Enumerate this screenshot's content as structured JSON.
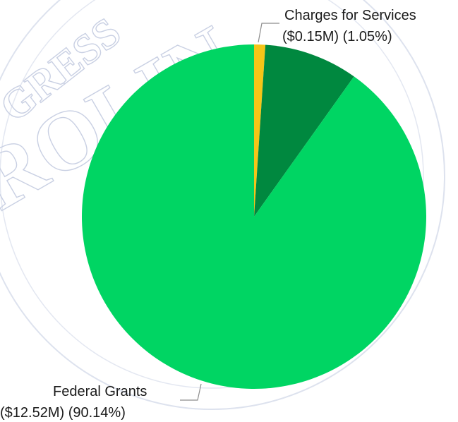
{
  "chart_data": {
    "type": "pie",
    "title": "",
    "slices": [
      {
        "name": "Charges for Services",
        "amount": "($0.15M)",
        "percent_label": "(1.05%)",
        "value": 1.05,
        "color": "#f5c518",
        "labeled": true
      },
      {
        "name": "",
        "amount": "",
        "percent_label": "",
        "value": 8.81,
        "color": "#00883f",
        "labeled": false
      },
      {
        "name": "Federal Grants",
        "amount": "($12.52M)",
        "percent_label": "(90.14%)",
        "value": 90.14,
        "color": "#00d563",
        "labeled": true
      }
    ],
    "legend": "none"
  },
  "watermark": {
    "words": [
      "GRESS",
      "ROLIN"
    ]
  }
}
